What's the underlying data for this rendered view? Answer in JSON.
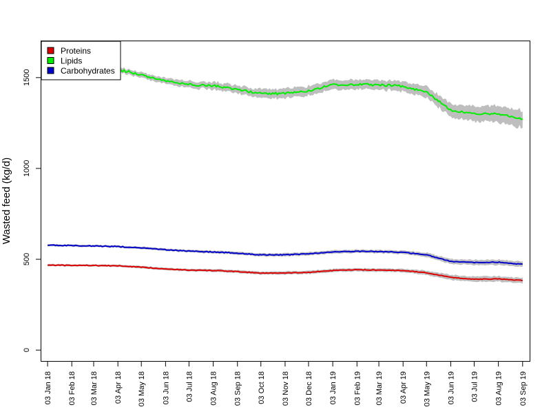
{
  "chart_data": {
    "type": "line",
    "title": "",
    "xlabel": "",
    "ylabel": "Wasted feed (kg/d)",
    "ylim": [
      -60,
      1700
    ],
    "xlim_days": [
      -8,
      617
    ],
    "yticks": [
      0,
      500,
      1000,
      1500
    ],
    "grid": false,
    "legend_position": "top-left",
    "x_start_date": "2018-01-03",
    "x_tick_labels": [
      "03 Jan 18",
      "03 Feb 18",
      "03 Mar 18",
      "03 Apr 18",
      "03 May 18",
      "03 Jun 18",
      "03 Jul 18",
      "03 Aug 18",
      "03 Sep 18",
      "03 Oct 18",
      "03 Nov 18",
      "03 Dec 18",
      "03 Jan 19",
      "03 Feb 19",
      "03 Mar 19",
      "03 Apr 19",
      "03 May 19",
      "03 Jun 19",
      "03 Jul 19",
      "03 Aug 19",
      "03 Sep 19"
    ],
    "x_tick_dates": [
      "2018-01-03",
      "2018-02-03",
      "2018-03-03",
      "2018-04-03",
      "2018-05-03",
      "2018-06-03",
      "2018-07-03",
      "2018-08-03",
      "2018-09-03",
      "2018-10-03",
      "2018-11-03",
      "2018-12-03",
      "2019-01-03",
      "2019-02-03",
      "2019-03-03",
      "2019-04-03",
      "2019-05-03",
      "2019-06-03",
      "2019-07-03",
      "2019-08-03",
      "2019-09-03"
    ],
    "series": [
      {
        "name": "Proteins",
        "color": "#dd0000",
        "band_color": "#bebebe",
        "dates": [
          "2018-01-03",
          "2018-02-03",
          "2018-03-03",
          "2018-04-03",
          "2018-05-03",
          "2018-06-03",
          "2018-07-03",
          "2018-08-03",
          "2018-09-03",
          "2018-10-03",
          "2018-11-03",
          "2018-12-03",
          "2019-01-03",
          "2019-02-03",
          "2019-03-03",
          "2019-04-03",
          "2019-05-03",
          "2019-06-03",
          "2019-07-03",
          "2019-08-03",
          "2019-09-03"
        ],
        "values": [
          468,
          466,
          466,
          464,
          456,
          447,
          440,
          438,
          432,
          424,
          424,
          428,
          438,
          442,
          440,
          438,
          426,
          400,
          390,
          392,
          383
        ],
        "band": [
          6,
          6,
          6,
          6,
          7,
          7,
          7,
          8,
          8,
          8,
          9,
          9,
          9,
          9,
          9,
          10,
          12,
          14,
          14,
          15,
          15
        ]
      },
      {
        "name": "Lipids",
        "color": "#00ee00",
        "band_color": "#bebebe",
        "dates": [
          "2018-01-03",
          "2018-02-03",
          "2018-03-03",
          "2018-04-03",
          "2018-05-03",
          "2018-06-03",
          "2018-07-03",
          "2018-08-03",
          "2018-09-03",
          "2018-10-03",
          "2018-11-03",
          "2018-12-03",
          "2019-01-03",
          "2019-02-03",
          "2019-03-03",
          "2019-04-03",
          "2019-05-03",
          "2019-06-03",
          "2019-07-03",
          "2019-08-03",
          "2019-09-03"
        ],
        "values": [
          1560,
          1560,
          1555,
          1545,
          1515,
          1482,
          1462,
          1455,
          1435,
          1412,
          1412,
          1428,
          1460,
          1462,
          1460,
          1452,
          1420,
          1320,
          1302,
          1300,
          1272
        ],
        "band": [
          12,
          12,
          12,
          14,
          15,
          16,
          18,
          20,
          22,
          24,
          26,
          26,
          26,
          26,
          26,
          28,
          32,
          38,
          42,
          45,
          48
        ]
      },
      {
        "name": "Carbohydrates",
        "color": "#0000cc",
        "band_color": "#bebebe",
        "dates": [
          "2018-01-03",
          "2018-02-03",
          "2018-03-03",
          "2018-04-03",
          "2018-05-03",
          "2018-06-03",
          "2018-07-03",
          "2018-08-03",
          "2018-09-03",
          "2018-10-03",
          "2018-11-03",
          "2018-12-03",
          "2019-01-03",
          "2019-02-03",
          "2019-03-03",
          "2019-04-03",
          "2019-05-03",
          "2019-06-03",
          "2019-07-03",
          "2019-08-03",
          "2019-09-03"
        ],
        "values": [
          578,
          575,
          573,
          570,
          562,
          552,
          545,
          540,
          534,
          524,
          524,
          530,
          540,
          544,
          542,
          538,
          525,
          488,
          482,
          484,
          472
        ],
        "band": [
          6,
          6,
          6,
          6,
          7,
          7,
          7,
          8,
          8,
          8,
          9,
          9,
          9,
          9,
          9,
          10,
          12,
          14,
          14,
          15,
          15
        ]
      }
    ]
  }
}
